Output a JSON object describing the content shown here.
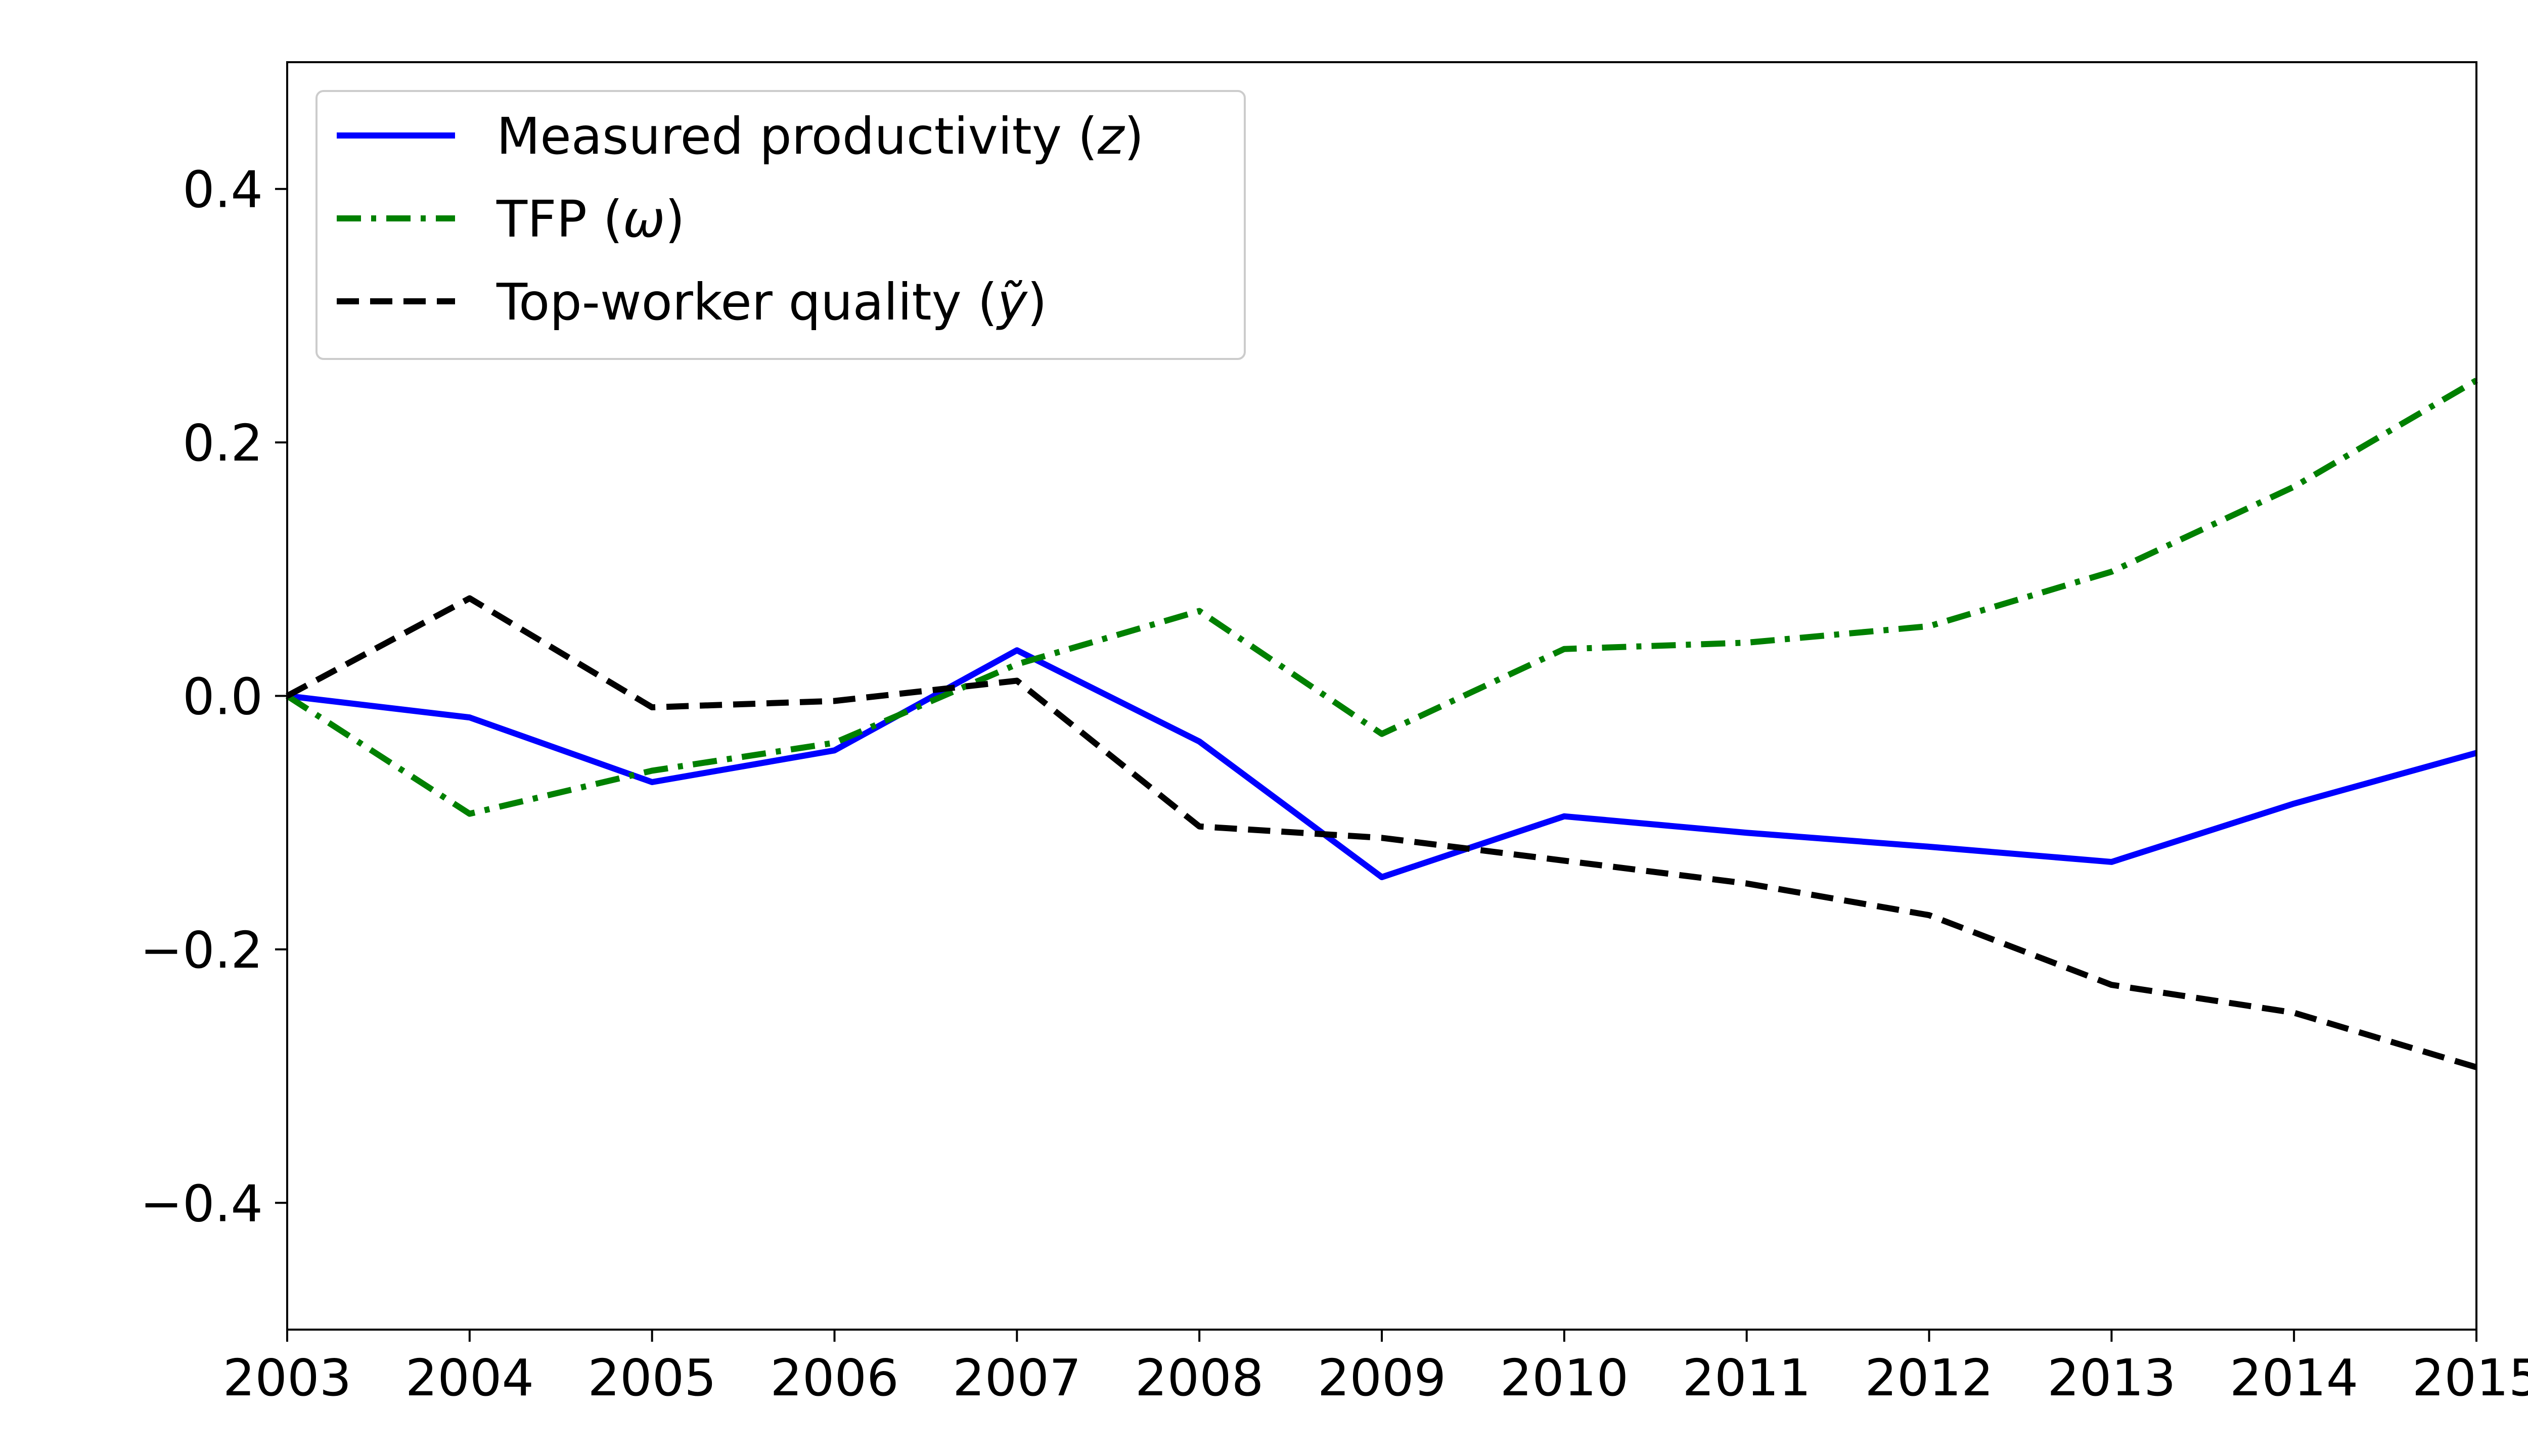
{
  "chart_data": {
    "type": "line",
    "title": "",
    "xlabel": "",
    "ylabel": "",
    "x": [
      2003,
      2004,
      2005,
      2006,
      2007,
      2008,
      2009,
      2010,
      2011,
      2012,
      2013,
      2014,
      2015
    ],
    "xlim": [
      2003,
      2015
    ],
    "ylim": [
      -0.5,
      0.5
    ],
    "grid": false,
    "legend_position": "top-left",
    "xticks": [
      {
        "value": 2003,
        "label": "2003"
      },
      {
        "value": 2004,
        "label": "2004"
      },
      {
        "value": 2005,
        "label": "2005"
      },
      {
        "value": 2006,
        "label": "2006"
      },
      {
        "value": 2007,
        "label": "2007"
      },
      {
        "value": 2008,
        "label": "2008"
      },
      {
        "value": 2009,
        "label": "2009"
      },
      {
        "value": 2010,
        "label": "2010"
      },
      {
        "value": 2011,
        "label": "2011"
      },
      {
        "value": 2012,
        "label": "2012"
      },
      {
        "value": 2013,
        "label": "2013"
      },
      {
        "value": 2014,
        "label": "2014"
      },
      {
        "value": 2015,
        "label": "2015"
      }
    ],
    "yticks": [
      {
        "value": 0.4,
        "label": "0.4"
      },
      {
        "value": 0.2,
        "label": "0.2"
      },
      {
        "value": 0.0,
        "label": "0.0"
      },
      {
        "value": -0.2,
        "label": "−0.2"
      },
      {
        "value": -0.4,
        "label": "−0.4"
      }
    ],
    "series": [
      {
        "id": "measured-productivity",
        "name": "Measured productivity (z)",
        "legend_prefix": "Measured productivity (",
        "legend_symbol": "z",
        "legend_suffix": ")",
        "color": "#0000ff",
        "style": "solid",
        "values": [
          0.0,
          -0.017,
          -0.068,
          -0.043,
          0.036,
          -0.036,
          -0.143,
          -0.095,
          -0.108,
          -0.119,
          -0.131,
          -0.085,
          -0.045
        ]
      },
      {
        "id": "tfp",
        "name": "TFP (ω)",
        "legend_prefix": "TFP (",
        "legend_symbol": "ω",
        "legend_suffix": ")",
        "color": "#008000",
        "style": "dashdot",
        "values": [
          0.0,
          -0.093,
          -0.059,
          -0.037,
          0.025,
          0.067,
          -0.03,
          0.037,
          0.042,
          0.055,
          0.098,
          0.165,
          0.249
        ]
      },
      {
        "id": "top-worker-quality",
        "name": "Top-worker quality (ỹ)",
        "legend_prefix": "Top-worker quality (",
        "legend_symbol": "ỹ",
        "legend_suffix": ")",
        "color": "#000000",
        "style": "dashed",
        "values": [
          0.0,
          0.077,
          -0.009,
          -0.004,
          0.012,
          -0.103,
          -0.112,
          -0.13,
          -0.148,
          -0.173,
          -0.228,
          -0.25,
          -0.293
        ]
      }
    ]
  }
}
